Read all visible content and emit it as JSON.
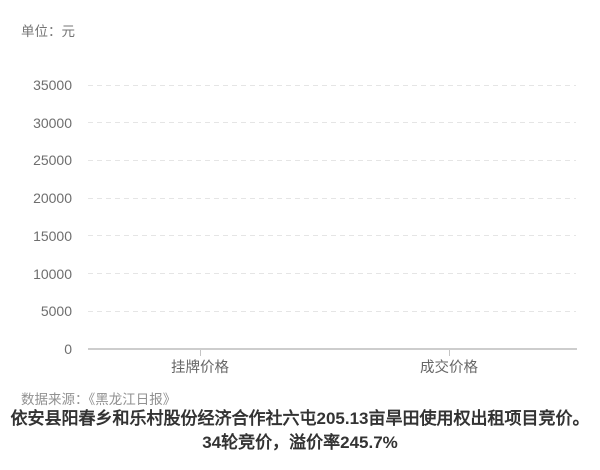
{
  "unit_label": "单位：元",
  "chart_data": {
    "type": "bar",
    "categories": [
      "挂牌价格",
      "成交价格"
    ],
    "values": [
      null,
      null
    ],
    "bars_rendered": false,
    "unit": "元",
    "ylim": [
      0,
      35000
    ],
    "yticks": [
      0,
      5000,
      10000,
      15000,
      20000,
      25000,
      30000,
      35000
    ],
    "grid": "horizontal-dashed",
    "legend": "none",
    "title": "依安县阳春乡和乐村股份经济合作社六屯205.13亩旱田使用权出租项目竞价。34轮竞价，溢价率245.7%"
  },
  "footer": {
    "source": "数据来源：《黑龙江日报》",
    "title_line1": "依安县阳春乡和乐村股份经济合作社六屯205.13亩旱田使用权出租项目竞价。",
    "title_line2": "34轮竞价，溢价率245.7%"
  },
  "colors": {
    "background": "#ffffff",
    "gridline": "#e5e5e5",
    "axis_line": "#cdcdcd",
    "tick_label": "#6e6e6e",
    "unit_label": "#757575",
    "source_text": "#919191",
    "caption_text": "#333333"
  }
}
